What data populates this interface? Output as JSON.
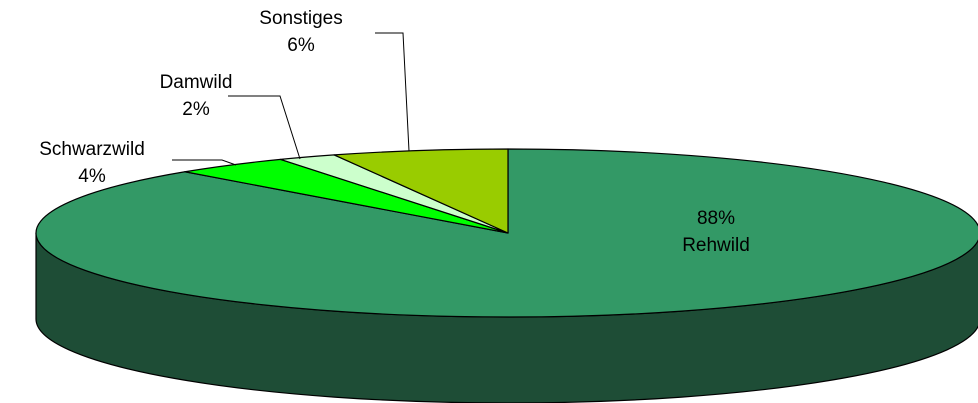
{
  "chart_data": {
    "type": "pie",
    "style": "3d",
    "title": "",
    "slices": [
      {
        "name": "Rehwild",
        "label": "Rehwild",
        "value": 88,
        "value_label": "88%",
        "color": "#339966",
        "side_color": "#1E4D36",
        "label_position": "inside"
      },
      {
        "name": "Schwarzwild",
        "label": "Schwarzwild",
        "value": 4,
        "value_label": "4%",
        "color": "#00FF00",
        "label_position": "outside"
      },
      {
        "name": "Damwild",
        "label": "Damwild",
        "value": 2,
        "value_label": "2%",
        "color": "#CCFFCC",
        "label_position": "outside"
      },
      {
        "name": "Sonstiges",
        "label": "Sonstiges",
        "value": 6,
        "value_label": "6%",
        "color": "#99CC00",
        "label_position": "outside"
      }
    ]
  }
}
